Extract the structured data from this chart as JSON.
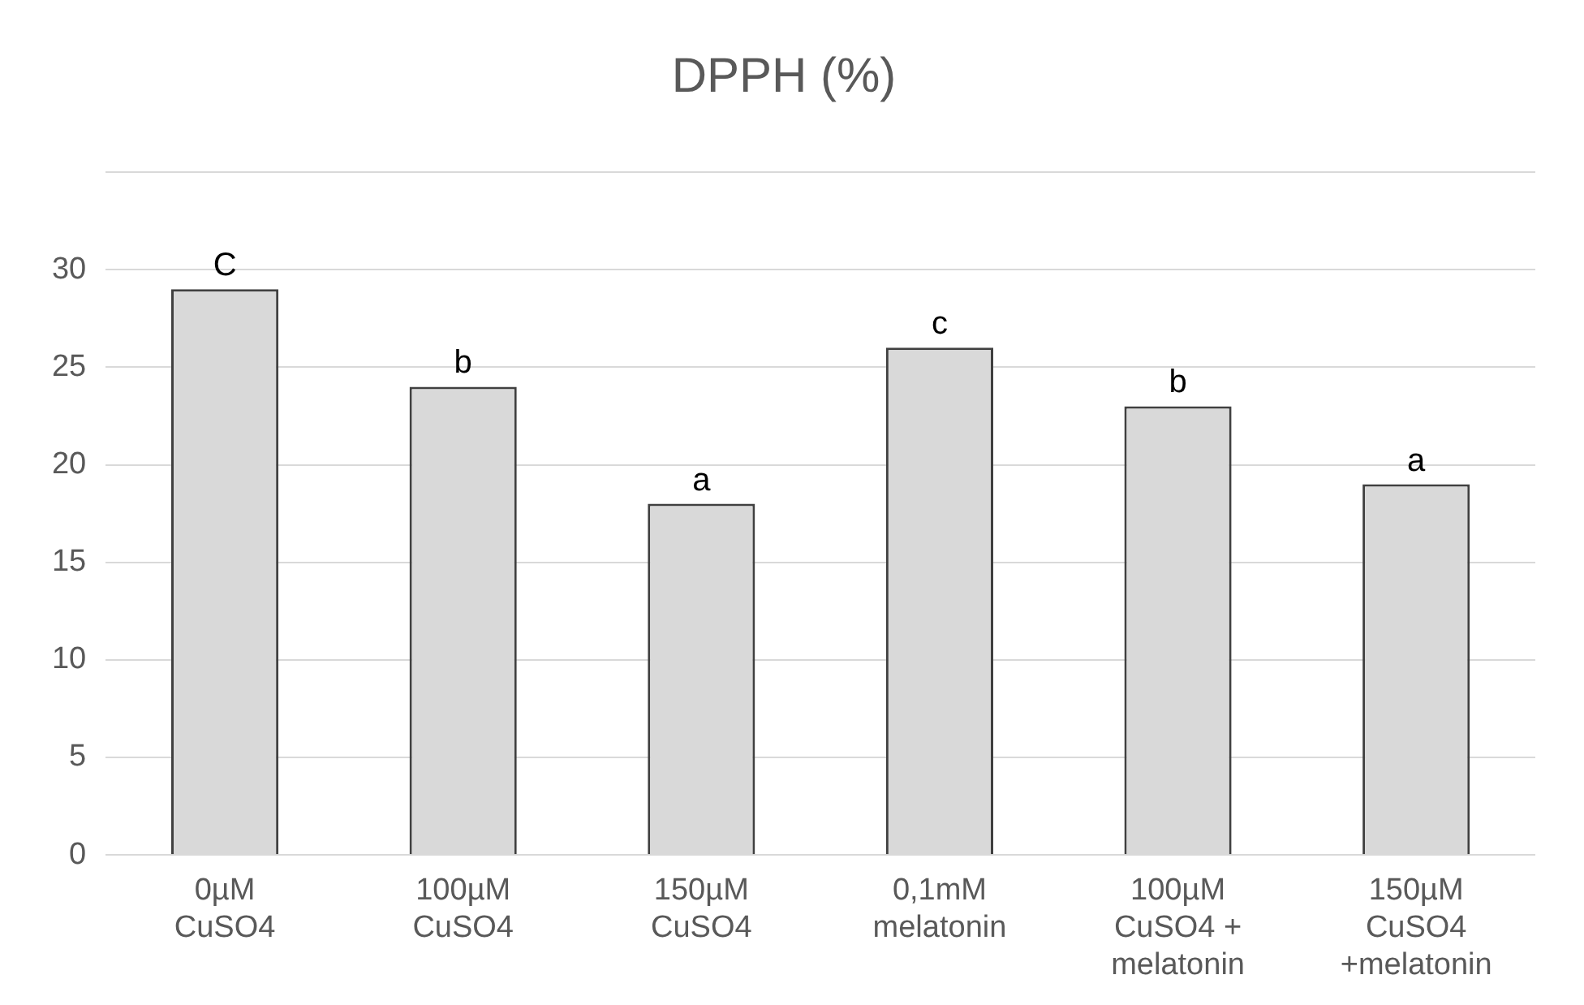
{
  "chart_data": {
    "type": "bar",
    "title": "DPPH (%)",
    "categories": [
      "0µM\nCuSO4",
      "100µM\nCuSO4",
      "150µM\nCuSO4",
      "0,1mM\nmelatonin",
      "100µM\nCuSO4 +\nmelatonin",
      "150µM\nCuSO4\n+melatonin"
    ],
    "values": [
      29,
      24,
      18,
      26,
      23,
      19
    ],
    "color": "#d9d9d9",
    "ylim": [
      0,
      35
    ],
    "yticks": [
      0,
      5,
      10,
      15,
      20,
      25,
      30,
      {
        "value": 35,
        "label": null
      }
    ],
    "grid": "y",
    "annotations": [
      {
        "text": "C",
        "x": "0µM\nCuSO4",
        "y": 29
      },
      {
        "text": "b",
        "x": "100µM\nCuSO4",
        "y": 24
      },
      {
        "text": "a",
        "x": "150µM\nCuSO4",
        "y": 18
      },
      {
        "text": "c",
        "x": "0,1mM\nmelatonin",
        "y": 26
      },
      {
        "text": "b",
        "x": "100µM\nCuSO4 +\nmelatonin",
        "y": 23
      },
      {
        "text": "a",
        "x": "150µM\nCuSO4\n+melatonin",
        "y": 19
      }
    ]
  }
}
